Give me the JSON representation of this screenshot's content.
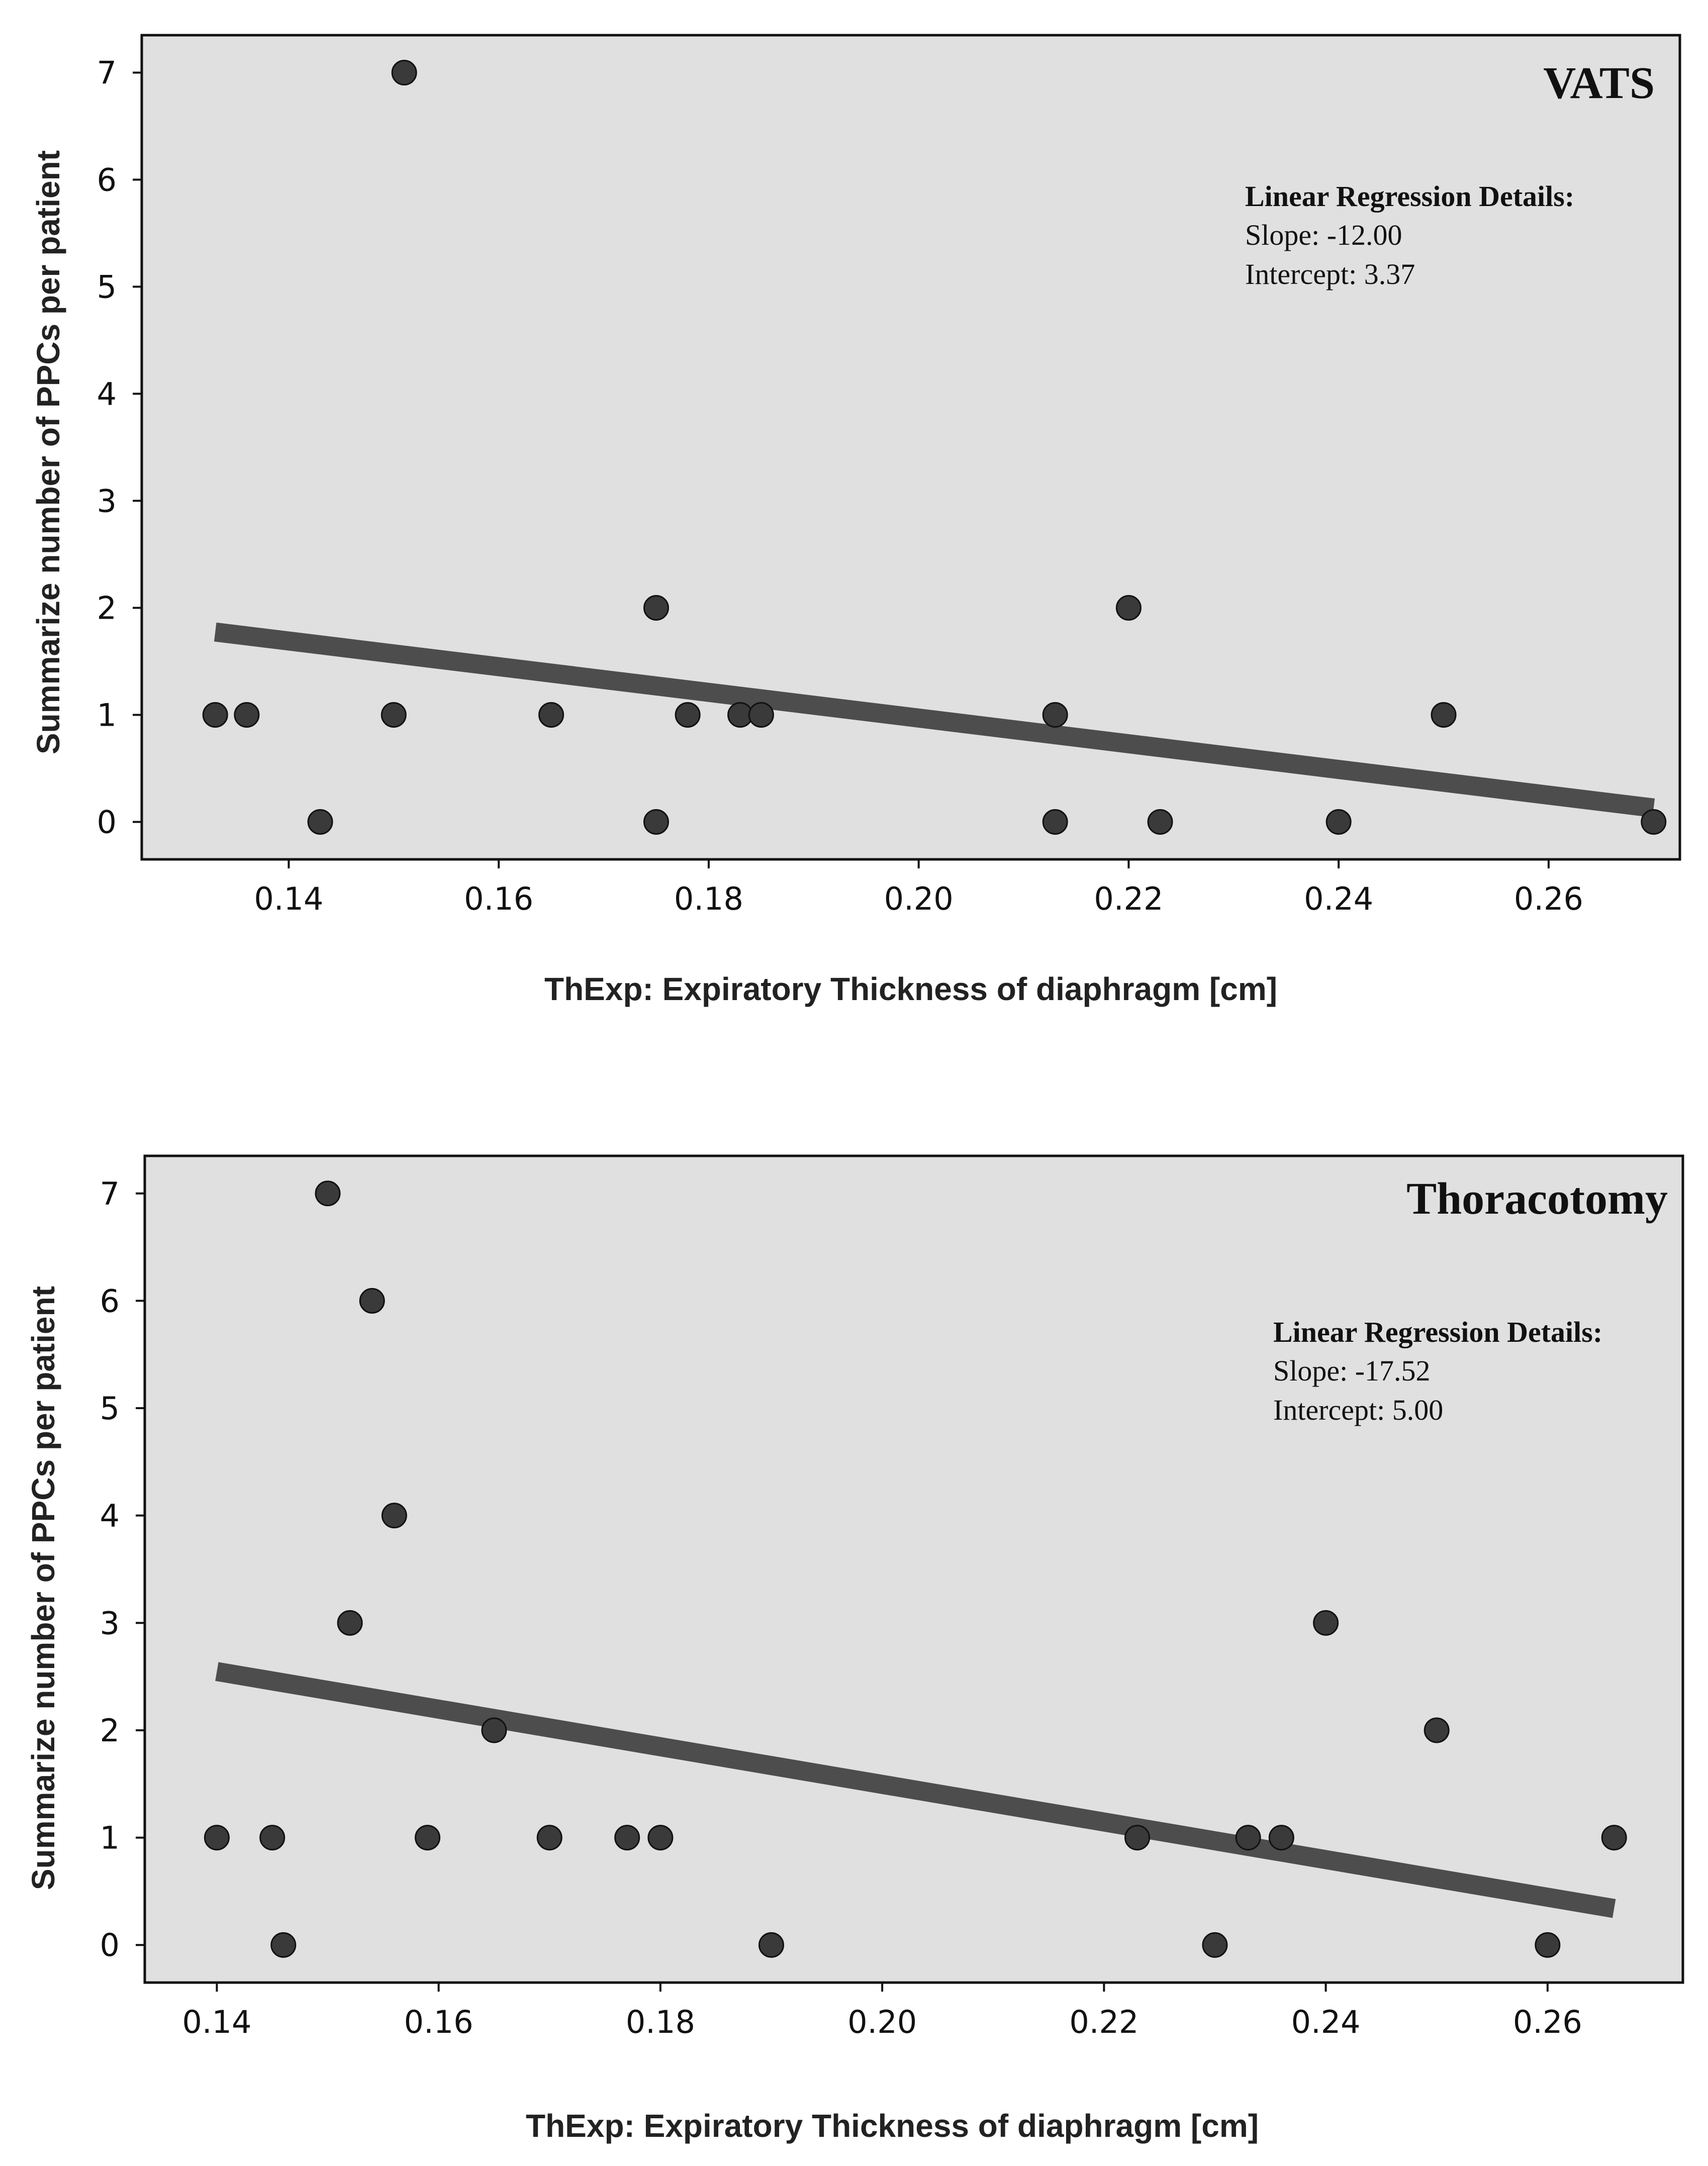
{
  "figure": {
    "panels": [
      {
        "label": "VATS",
        "regression": {
          "heading": "Linear Regression Details:",
          "slope_text": "Slope: -12.00",
          "intercept_text": "Intercept: 3.37"
        }
      },
      {
        "label": "Thoracotomy",
        "regression": {
          "heading": "Linear Regression Details:",
          "slope_text": "Slope: -17.52",
          "intercept_text": "Intercept: 5.00"
        }
      }
    ]
  },
  "chart_data": [
    {
      "type": "scatter",
      "title": "VATS",
      "xlabel": "ThExp: Expiratory Thickness of diaphragm [cm]",
      "ylabel": "Summarize number of PPCs per patient",
      "xlim": [
        0.126,
        0.2725
      ],
      "ylim": [
        -0.35,
        7.35
      ],
      "xticks": [
        0.14,
        0.16,
        0.18,
        0.2,
        0.22,
        0.24,
        0.26
      ],
      "xtick_labels": [
        "0.14",
        "0.16",
        "0.18",
        "0.20",
        "0.22",
        "0.24",
        "0.26"
      ],
      "yticks": [
        0,
        1,
        2,
        3,
        4,
        5,
        6,
        7
      ],
      "ytick_labels": [
        "0",
        "1",
        "2",
        "3",
        "4",
        "5",
        "6",
        "7"
      ],
      "points": {
        "x": [
          0.133,
          0.136,
          0.143,
          0.15,
          0.151,
          0.165,
          0.175,
          0.175,
          0.178,
          0.183,
          0.185,
          0.213,
          0.213,
          0.22,
          0.223,
          0.24,
          0.25,
          0.27
        ],
        "y": [
          1,
          1,
          0,
          1,
          7,
          1,
          2,
          0,
          1,
          1,
          1,
          1,
          0,
          2,
          0,
          0,
          1,
          0
        ]
      },
      "regression": {
        "slope": -12.0,
        "intercept": 3.37,
        "x_range": [
          0.133,
          0.27
        ]
      }
    },
    {
      "type": "scatter",
      "title": "Thoracotomy",
      "xlabel": "ThExp: Expiratory Thickness of diaphragm [cm]",
      "ylabel": "Summarize number of PPCs per patient",
      "xlim": [
        0.1335,
        0.2722
      ],
      "ylim": [
        -0.35,
        7.35
      ],
      "xticks": [
        0.14,
        0.16,
        0.18,
        0.2,
        0.22,
        0.24,
        0.26
      ],
      "xtick_labels": [
        "0.14",
        "0.16",
        "0.18",
        "0.20",
        "0.22",
        "0.24",
        "0.26"
      ],
      "yticks": [
        0,
        1,
        2,
        3,
        4,
        5,
        6,
        7
      ],
      "ytick_labels": [
        "0",
        "1",
        "2",
        "3",
        "4",
        "5",
        "6",
        "7"
      ],
      "points": {
        "x": [
          0.14,
          0.145,
          0.146,
          0.15,
          0.152,
          0.154,
          0.156,
          0.159,
          0.165,
          0.17,
          0.177,
          0.18,
          0.19,
          0.223,
          0.23,
          0.233,
          0.236,
          0.24,
          0.25,
          0.26,
          0.266
        ],
        "y": [
          1,
          1,
          0,
          7,
          3,
          6,
          4,
          1,
          2,
          1,
          1,
          1,
          0,
          1,
          0,
          1,
          1,
          3,
          2,
          0,
          1
        ]
      },
      "regression": {
        "slope": -17.52,
        "intercept": 5.0,
        "x_range": [
          0.14,
          0.266
        ]
      }
    }
  ]
}
